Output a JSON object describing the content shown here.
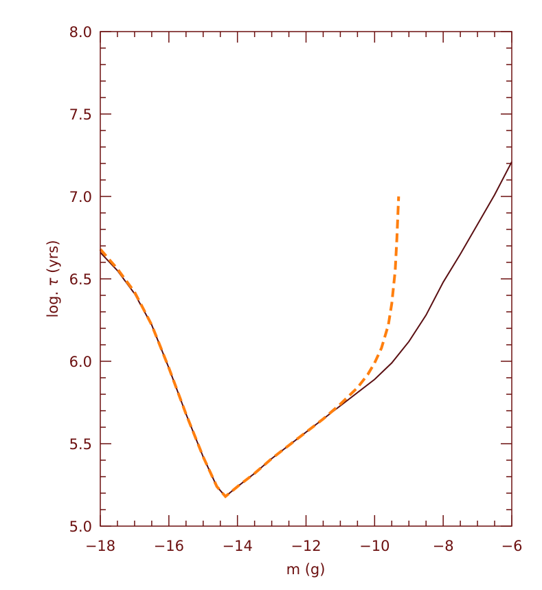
{
  "chart_data": {
    "type": "line",
    "xlabel": "m (g)",
    "ylabel_prefix": "log. ",
    "ylabel_symbol": "τ",
    "ylabel_suffix": " (yrs)",
    "xlim": [
      -18,
      -6
    ],
    "ylim": [
      5.0,
      8.0
    ],
    "x_major_ticks": [
      -18,
      -16,
      -14,
      -12,
      -10,
      -8,
      -6
    ],
    "x_tick_labels": [
      "−18",
      "−16",
      "−14",
      "−12",
      "−10",
      "−8",
      "−6"
    ],
    "x_minor_step": 0.5,
    "y_major_ticks": [
      5.0,
      5.5,
      6.0,
      6.5,
      7.0,
      7.5,
      8.0
    ],
    "y_tick_labels": [
      "5.0",
      "5.5",
      "6.0",
      "6.5",
      "7.0",
      "7.5",
      "8.0"
    ],
    "y_minor_step": 0.1,
    "grid": false,
    "colors": {
      "axis": "#6b0f0f",
      "solid": "#5a0f12",
      "dashed": "#ff7f0e"
    },
    "series": [
      {
        "style": "solid",
        "points": [
          [
            -18.0,
            6.66
          ],
          [
            -17.5,
            6.55
          ],
          [
            -17.0,
            6.41
          ],
          [
            -16.5,
            6.22
          ],
          [
            -16.0,
            5.96
          ],
          [
            -15.5,
            5.68
          ],
          [
            -15.0,
            5.42
          ],
          [
            -14.6,
            5.24
          ],
          [
            -14.35,
            5.18
          ],
          [
            -14.0,
            5.24
          ],
          [
            -13.5,
            5.32
          ],
          [
            -13.0,
            5.41
          ],
          [
            -12.5,
            5.49
          ],
          [
            -12.0,
            5.57
          ],
          [
            -11.5,
            5.65
          ],
          [
            -11.0,
            5.73
          ],
          [
            -10.5,
            5.81
          ],
          [
            -10.0,
            5.89
          ],
          [
            -9.5,
            5.99
          ],
          [
            -9.0,
            6.12
          ],
          [
            -8.5,
            6.28
          ],
          [
            -8.0,
            6.48
          ],
          [
            -7.5,
            6.65
          ],
          [
            -7.0,
            6.83
          ],
          [
            -6.5,
            7.01
          ],
          [
            -6.0,
            7.21
          ]
        ]
      },
      {
        "style": "dashed",
        "points": [
          [
            -18.0,
            6.68
          ],
          [
            -17.5,
            6.56
          ],
          [
            -17.0,
            6.42
          ],
          [
            -16.5,
            6.22
          ],
          [
            -16.0,
            5.96
          ],
          [
            -15.5,
            5.68
          ],
          [
            -15.0,
            5.42
          ],
          [
            -14.6,
            5.24
          ],
          [
            -14.35,
            5.18
          ],
          [
            -14.0,
            5.24
          ],
          [
            -13.5,
            5.32
          ],
          [
            -13.0,
            5.41
          ],
          [
            -12.5,
            5.49
          ],
          [
            -12.0,
            5.57
          ],
          [
            -11.5,
            5.65
          ],
          [
            -11.0,
            5.74
          ],
          [
            -10.5,
            5.84
          ],
          [
            -10.2,
            5.92
          ],
          [
            -10.0,
            5.99
          ],
          [
            -9.8,
            6.08
          ],
          [
            -9.6,
            6.22
          ],
          [
            -9.5,
            6.35
          ],
          [
            -9.4,
            6.55
          ],
          [
            -9.35,
            6.75
          ],
          [
            -9.3,
            7.0
          ]
        ]
      }
    ]
  }
}
